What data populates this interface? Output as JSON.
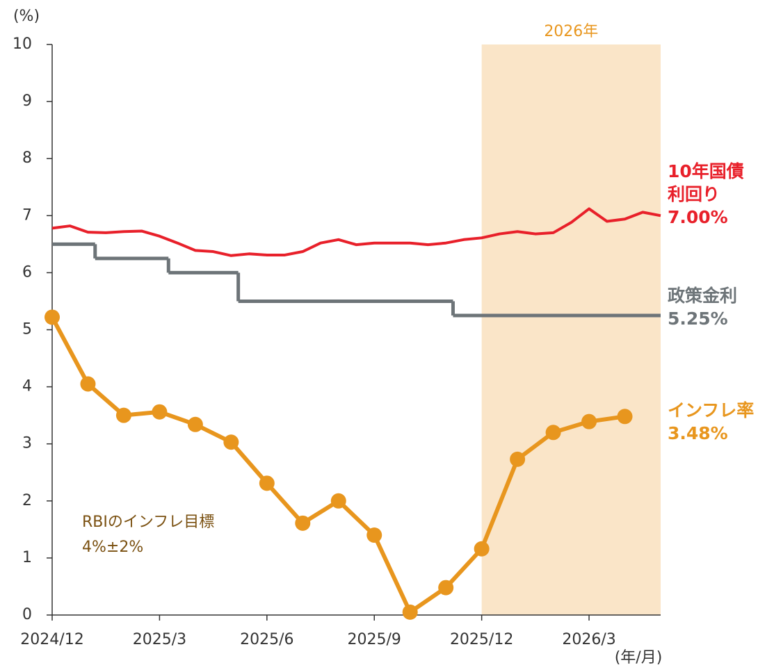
{
  "chart_data": {
    "type": "line",
    "y_unit": "(%)",
    "x_unit": "(年/月)",
    "ylim": [
      0,
      10
    ],
    "yticks": [
      0,
      1,
      2,
      3,
      4,
      5,
      6,
      7,
      8,
      9,
      10
    ],
    "xlim": [
      0,
      17
    ],
    "xticks": [
      {
        "value": 0,
        "label": "2024/12"
      },
      {
        "value": 3,
        "label": "2025/3"
      },
      {
        "value": 6,
        "label": "2025/6"
      },
      {
        "value": 9,
        "label": "2025/9"
      },
      {
        "value": 12,
        "label": "2025/12"
      },
      {
        "value": 15,
        "label": "2026/3"
      }
    ],
    "shade": {
      "from": 12,
      "to": 17,
      "label": "2026年",
      "color": "#fae5c8"
    },
    "series": [
      {
        "name": "10年国債利回り",
        "color": "#e8202a",
        "style": "line",
        "x": [
          0,
          0.5,
          1,
          1.5,
          2,
          2.5,
          3,
          3.5,
          4,
          4.5,
          5,
          5.5,
          6,
          6.5,
          7,
          7.5,
          8,
          8.5,
          9,
          9.5,
          10,
          10.5,
          11,
          11.5,
          12,
          12.5,
          13,
          13.5,
          14,
          14.5,
          15,
          15.5,
          16,
          16.5,
          17
        ],
        "values": [
          6.78,
          6.82,
          6.71,
          6.7,
          6.72,
          6.73,
          6.64,
          6.52,
          6.39,
          6.37,
          6.3,
          6.33,
          6.31,
          6.31,
          6.37,
          6.52,
          6.58,
          6.49,
          6.52,
          6.52,
          6.52,
          6.49,
          6.52,
          6.58,
          6.61,
          6.68,
          6.72,
          6.68,
          6.7,
          6.88,
          7.12,
          6.9,
          6.94,
          7.06,
          7.0
        ]
      },
      {
        "name": "政策金利",
        "color": "#6d7478",
        "style": "step",
        "x": [
          0,
          1.2,
          3.25,
          5.2,
          11.2,
          17
        ],
        "values": [
          6.5,
          6.25,
          6.0,
          5.5,
          5.25,
          5.25
        ]
      },
      {
        "name": "インフレ率",
        "color": "#e8961e",
        "style": "markers",
        "x": [
          0,
          1,
          2,
          3,
          4,
          5,
          6,
          7,
          8,
          9,
          10,
          11,
          12,
          13,
          14,
          15,
          16
        ],
        "values": [
          5.22,
          4.05,
          3.5,
          3.56,
          3.34,
          3.03,
          2.31,
          1.61,
          2.0,
          1.4,
          0.05,
          0.48,
          1.16,
          2.73,
          3.2,
          3.39,
          3.48
        ]
      }
    ],
    "annotations": [
      {
        "lines": [
          "10年国債",
          "利回り",
          "7.00%"
        ],
        "color": "#e8202a"
      },
      {
        "lines": [
          "政策金利",
          "5.25%"
        ],
        "color": "#6d7478"
      },
      {
        "lines": [
          "インフレ率",
          "3.48%"
        ],
        "color": "#e8961e"
      },
      {
        "lines": [
          "RBIのインフレ目標",
          "4%±2%"
        ],
        "color": "#7a5010"
      }
    ]
  }
}
